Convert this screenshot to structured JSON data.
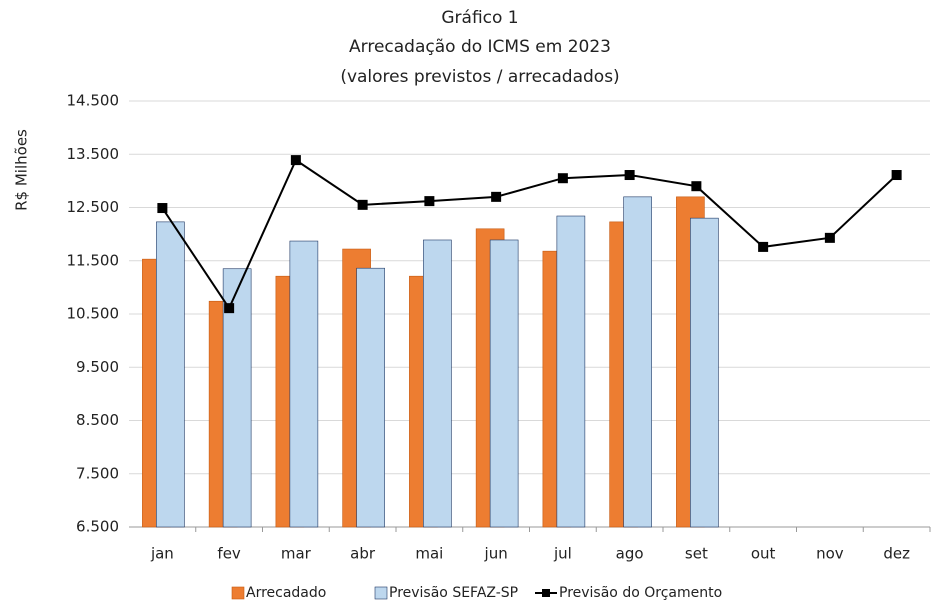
{
  "chart_data": {
    "type": "bar_line",
    "title": [
      "Gráfico 1",
      "Arrecadação do ICMS em 2023",
      "(valores previstos / arrecadados)"
    ],
    "y_label": "R$ Milhões",
    "categories": [
      "jan",
      "fev",
      "mar",
      "abr",
      "mai",
      "jun",
      "jul",
      "ago",
      "set",
      "out",
      "nov",
      "dez"
    ],
    "series": [
      {
        "name": "Arrecadado",
        "type": "bar",
        "color": "#ed7d31",
        "values": [
          11530,
          10740,
          11210,
          11720,
          11210,
          12100,
          11680,
          12230,
          12700,
          null,
          null,
          null
        ]
      },
      {
        "name": "Previsão SEFAZ-SP",
        "type": "bar",
        "color": "#bdd7ee",
        "values": [
          12230,
          11350,
          11870,
          11360,
          11890,
          11890,
          12340,
          12700,
          12300,
          null,
          null,
          null
        ]
      },
      {
        "name": "Previsão do Orçamento",
        "type": "line",
        "color": "#000000",
        "values": [
          12490,
          10610,
          13390,
          12550,
          12620,
          12700,
          13050,
          13110,
          12900,
          11760,
          11930,
          13110
        ]
      }
    ],
    "ylim": [
      6500,
      14500
    ],
    "yticks": [
      {
        "value": 6500,
        "label": "6.500"
      },
      {
        "value": 7500,
        "label": "7.500"
      },
      {
        "value": 8500,
        "label": "8.500"
      },
      {
        "value": 9500,
        "label": "9.500"
      },
      {
        "value": 10500,
        "label": "10.500"
      },
      {
        "value": 11500,
        "label": "11.500"
      },
      {
        "value": 12500,
        "label": "12.500"
      },
      {
        "value": 13500,
        "label": "13.500"
      },
      {
        "value": 14500,
        "label": "14.500"
      }
    ],
    "grid": true
  }
}
